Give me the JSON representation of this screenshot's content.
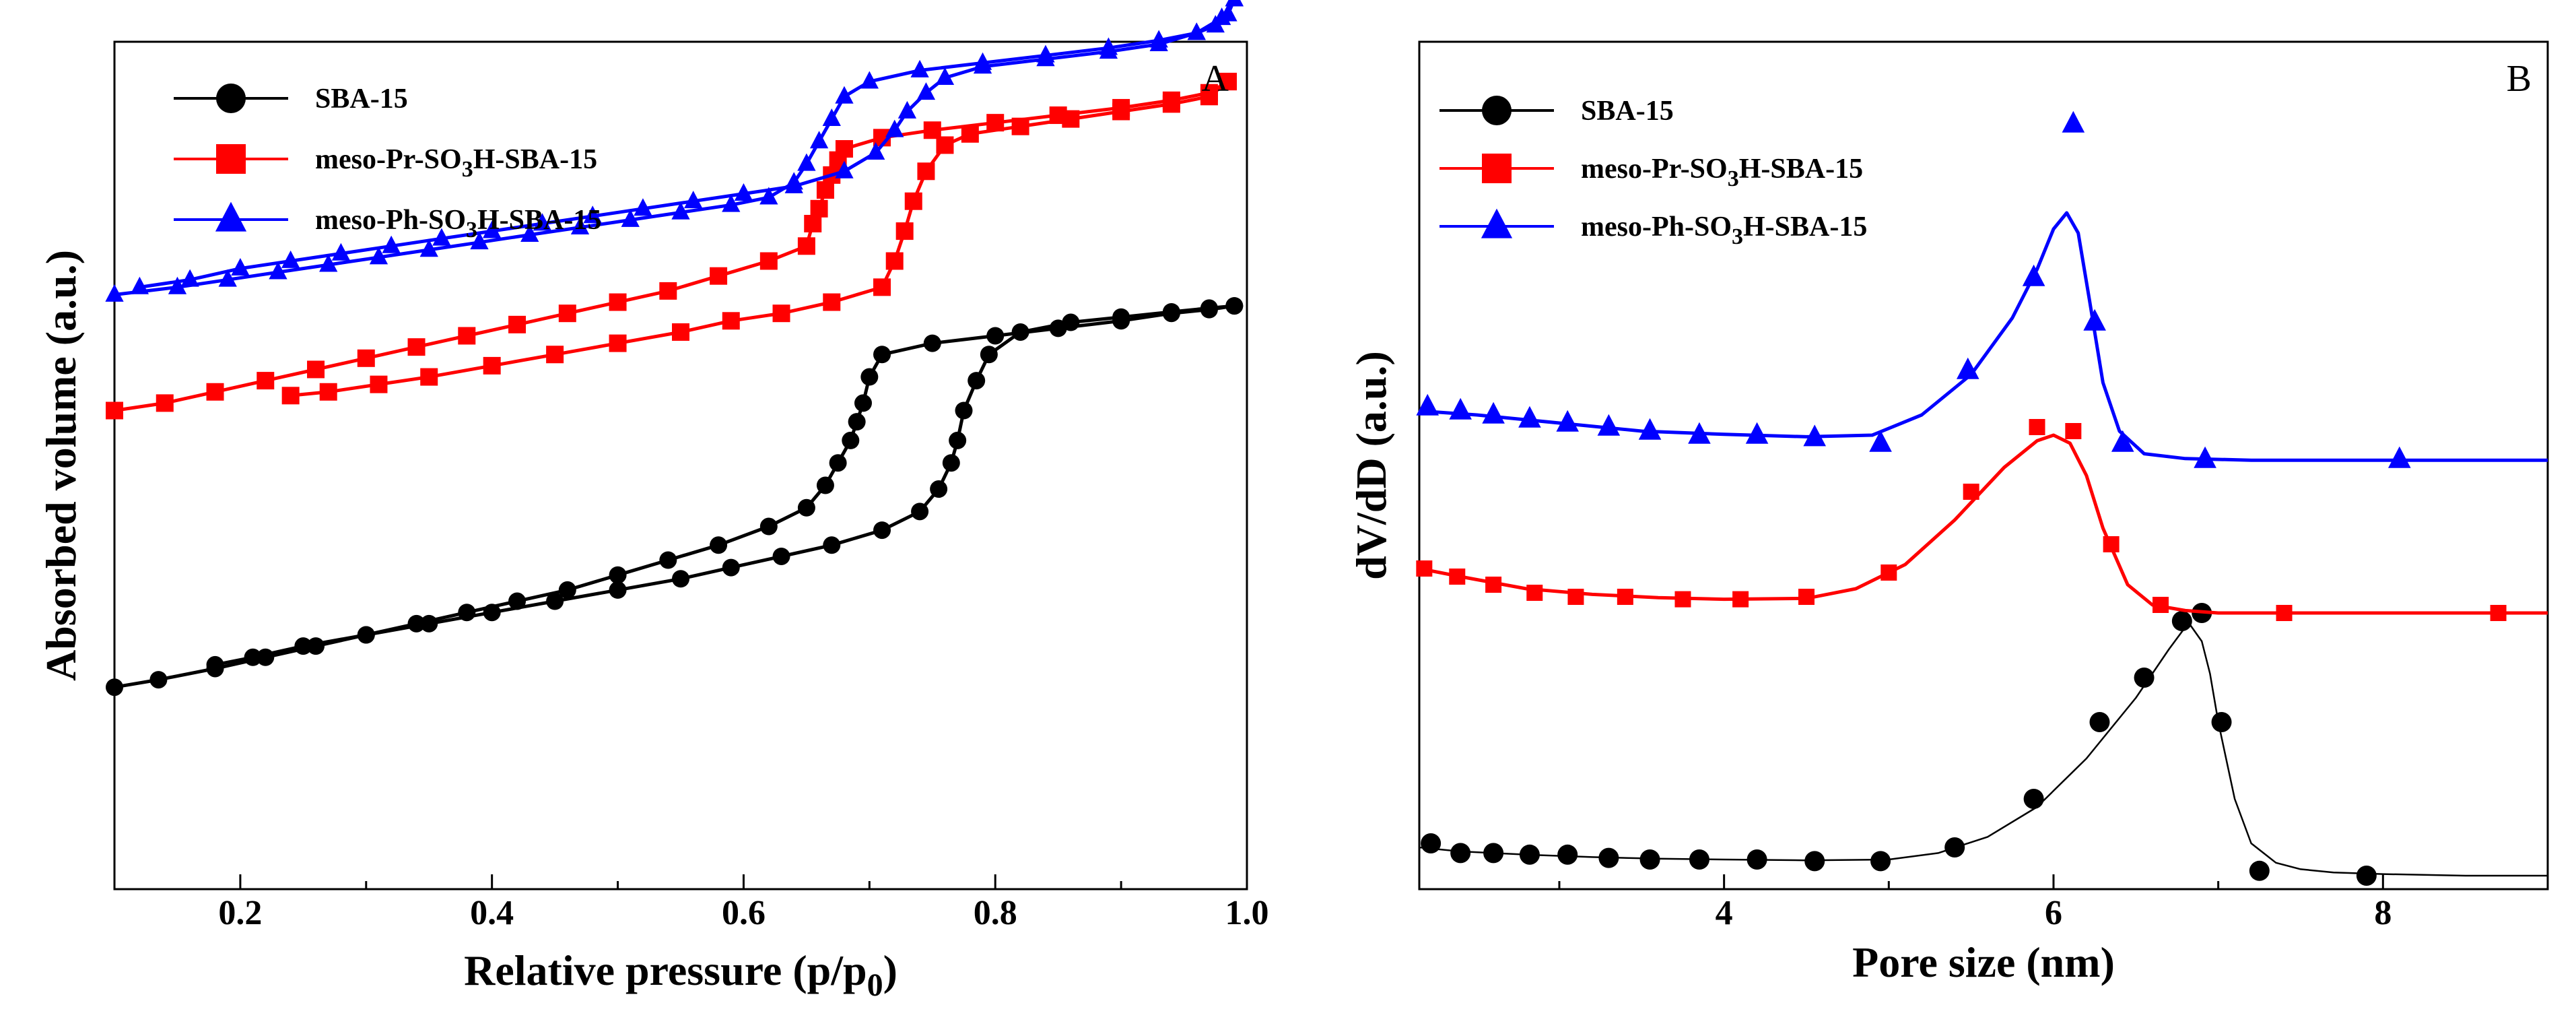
{
  "chart_data": [
    {
      "type": "line",
      "panel_label": "A",
      "xlabel": "Relative pressure (p/p0)",
      "xlabel_parts": {
        "main": "Relative pressure (p/p",
        "sub": "0",
        "close": ")"
      },
      "ylabel": "Absorbed volume (a.u.)",
      "xlim": [
        0.1,
        1.0
      ],
      "ylim": [
        0,
        100
      ],
      "xticks": [
        0.2,
        0.4,
        0.6,
        0.8,
        1.0
      ],
      "xtick_labels": [
        "0.2",
        "0.4",
        "0.6",
        "0.8",
        "1.0"
      ],
      "yticks_shown": false,
      "legend_position": "top-left",
      "series": [
        {
          "name": "SBA-15",
          "name_parts": {
            "pre": "SBA-15",
            "sub": "",
            "post": ""
          },
          "color": "#000000",
          "marker": "circle",
          "adsorption": {
            "x": [
              0.1,
              0.135,
              0.18,
              0.22,
              0.26,
              0.3,
              0.34,
              0.38,
              0.42,
              0.46,
              0.5,
              0.54,
              0.58,
              0.62,
              0.65,
              0.665,
              0.675,
              0.685,
              0.69,
              0.695,
              0.7,
              0.71,
              0.75,
              0.8,
              0.85,
              0.9,
              0.94,
              0.97,
              0.99
            ],
            "y": [
              18.0,
              19.0,
              20.5,
              22.0,
              23.5,
              25.0,
              26.5,
              28.0,
              29.5,
              31.0,
              33.0,
              35.0,
              37.0,
              39.5,
              42.0,
              45.0,
              48.0,
              51.0,
              53.5,
              56.0,
              59.5,
              62.5,
              64.0,
              65.0,
              66.0,
              67.0,
              68.0,
              68.5,
              69.0
            ]
          },
          "desorption": {
            "x": [
              0.99,
              0.97,
              0.94,
              0.9,
              0.86,
              0.82,
              0.795,
              0.785,
              0.775,
              0.77,
              0.765,
              0.755,
              0.74,
              0.71,
              0.67,
              0.63,
              0.59,
              0.55,
              0.5,
              0.45,
              0.4,
              0.35,
              0.3,
              0.25,
              0.21,
              0.18
            ],
            "y": [
              69.0,
              68.7,
              68.2,
              67.5,
              66.8,
              65.5,
              62.5,
              59.0,
              55.0,
              51.0,
              48.0,
              44.5,
              41.5,
              39.0,
              37.0,
              35.5,
              34.0,
              32.5,
              31.0,
              29.5,
              28.0,
              26.5,
              25.0,
              23.5,
              22.0,
              21.0
            ]
          }
        },
        {
          "name": "meso-Pr-SO3H-SBA-15",
          "name_parts": {
            "pre": "meso-Pr-SO",
            "sub": "3",
            "post": "H-SBA-15"
          },
          "color": "#ff0000",
          "marker": "square",
          "adsorption": {
            "x": [
              0.1,
              0.14,
              0.18,
              0.22,
              0.26,
              0.3,
              0.34,
              0.38,
              0.42,
              0.46,
              0.5,
              0.54,
              0.58,
              0.62,
              0.65,
              0.655,
              0.66,
              0.665,
              0.67,
              0.675,
              0.68,
              0.71,
              0.75,
              0.8,
              0.85,
              0.9,
              0.94,
              0.97,
              0.985
            ],
            "y": [
              55.0,
              56.0,
              57.5,
              59.0,
              60.5,
              62.0,
              63.5,
              65.0,
              66.5,
              68.0,
              69.5,
              71.0,
              73.0,
              75.0,
              77.0,
              80.0,
              82.0,
              84.5,
              86.5,
              88.5,
              90.0,
              91.5,
              92.5,
              93.5,
              94.5,
              95.5,
              96.5,
              97.5,
              99.0
            ]
          },
          "desorption": {
            "x": [
              0.985,
              0.97,
              0.94,
              0.9,
              0.86,
              0.82,
              0.78,
              0.76,
              0.745,
              0.735,
              0.728,
              0.72,
              0.71,
              0.67,
              0.63,
              0.59,
              0.55,
              0.5,
              0.45,
              0.4,
              0.35,
              0.31,
              0.27,
              0.24
            ],
            "y": [
              99.0,
              97.0,
              96.0,
              95.0,
              94.0,
              93.0,
              92.0,
              90.5,
              87.0,
              83.0,
              79.0,
              75.0,
              71.5,
              69.5,
              68.0,
              67.0,
              65.5,
              64.0,
              62.5,
              61.0,
              59.5,
              58.5,
              57.5,
              57.0
            ]
          }
        },
        {
          "name": "meso-Ph-SO3H-SBA-15",
          "name_parts": {
            "pre": "meso-Ph-SO",
            "sub": "3",
            "post": "H-SBA-15"
          },
          "color": "#0000ff",
          "marker": "triangle",
          "adsorption": {
            "x": [
              0.1,
              0.15,
              0.19,
              0.23,
              0.27,
              0.31,
              0.35,
              0.39,
              0.43,
              0.47,
              0.51,
              0.55,
              0.59,
              0.62,
              0.64,
              0.65,
              0.66,
              0.67,
              0.68,
              0.7,
              0.74,
              0.79,
              0.84,
              0.89,
              0.93,
              0.96,
              0.975,
              0.985,
              0.99
            ],
            "y": [
              70.5,
              71.5,
              72.5,
              73.5,
              74.5,
              75.5,
              76.5,
              77.5,
              78.5,
              79.5,
              80.5,
              81.5,
              82.5,
              83.5,
              85.5,
              88.0,
              91.0,
              94.0,
              97.0,
              99.0,
              100.5,
              101.5,
              102.5,
              103.5,
              104.5,
              105.5,
              106.5,
              108.0,
              110.0
            ]
          },
          "desorption": {
            "x": [
              0.99,
              0.98,
              0.96,
              0.93,
              0.89,
              0.84,
              0.79,
              0.76,
              0.745,
              0.73,
              0.72,
              0.705,
              0.68,
              0.64,
              0.6,
              0.56,
              0.52,
              0.48,
              0.44,
              0.4,
              0.36,
              0.32,
              0.28,
              0.24,
              0.2,
              0.16,
              0.12
            ],
            "y": [
              110.0,
              107.5,
              105.5,
              104.0,
              103.0,
              102.0,
              101.0,
              99.5,
              97.5,
              95.0,
              92.5,
              89.5,
              87.0,
              85.0,
              84.0,
              83.0,
              82.0,
              81.0,
              80.0,
              79.0,
              78.0,
              77.0,
              76.0,
              75.0,
              74.0,
              72.5,
              71.5
            ]
          }
        }
      ]
    },
    {
      "type": "line",
      "panel_label": "B",
      "xlabel": "Pore size (nm)",
      "ylabel": "dV/dD (a.u.)",
      "xlim": [
        2.15,
        9.0
      ],
      "ylim": [
        0,
        100
      ],
      "xticks": [
        4,
        6,
        8
      ],
      "xtick_labels": [
        "4",
        "6",
        "8"
      ],
      "yticks_shown": false,
      "legend_position": "top-left",
      "series": [
        {
          "name": "SBA-15",
          "name_parts": {
            "pre": "SBA-15",
            "sub": "",
            "post": ""
          },
          "color": "#000000",
          "marker": "circle",
          "markers": {
            "x": [
              2.22,
              2.4,
              2.6,
              2.82,
              3.05,
              3.3,
              3.55,
              3.85,
              4.2,
              4.55,
              4.95,
              5.4,
              5.88,
              6.28,
              6.55,
              6.78,
              6.9,
              7.02,
              7.25,
              7.9
            ],
            "y": [
              9.0,
              7.8,
              7.8,
              7.6,
              7.6,
              7.2,
              7.0,
              7.0,
              7.0,
              6.8,
              6.8,
              8.5,
              14.5,
              24.0,
              29.5,
              36.5,
              37.5,
              24.0,
              5.6,
              5.0
            ]
          },
          "curve": {
            "x": [
              2.15,
              2.4,
              2.8,
              3.2,
              3.6,
              4.0,
              4.5,
              5.0,
              5.3,
              5.6,
              5.9,
              6.2,
              6.5,
              6.7,
              6.82,
              6.9,
              6.95,
              7.0,
              7.1,
              7.2,
              7.35,
              7.5,
              7.7,
              8.0,
              8.5,
              9.0
            ],
            "y": [
              8.5,
              8.0,
              7.6,
              7.3,
              7.1,
              7.0,
              6.9,
              7.0,
              7.8,
              9.8,
              13.5,
              19.5,
              27.0,
              33.0,
              36.3,
              34.0,
              30.0,
              24.0,
              14.5,
              9.0,
              6.6,
              5.8,
              5.4,
              5.2,
              5.0,
              5.0
            ]
          }
        },
        {
          "name": "meso-Pr-SO3H-SBA-15",
          "name_parts": {
            "pre": "meso-Pr-SO",
            "sub": "3",
            "post": "H-SBA-15"
          },
          "color": "#ff0000",
          "marker": "square",
          "markers": {
            "x": [
              2.18,
              2.38,
              2.6,
              2.85,
              3.1,
              3.4,
              3.75,
              4.1,
              4.5,
              5.0,
              5.5,
              5.9,
              6.12,
              6.35,
              6.65,
              7.4,
              8.7
            ],
            "y": [
              43.0,
              42.0,
              41.0,
              40.0,
              39.5,
              39.5,
              39.2,
              39.2,
              39.5,
              42.5,
              52.5,
              60.5,
              60.0,
              46.0,
              38.5,
              37.5,
              37.5
            ]
          },
          "curve": {
            "x": [
              2.15,
              2.4,
              2.8,
              3.2,
              3.6,
              4.0,
              4.5,
              4.8,
              5.1,
              5.4,
              5.7,
              5.9,
              6.0,
              6.1,
              6.2,
              6.3,
              6.45,
              6.6,
              6.8,
              7.0,
              7.5,
              8.0,
              9.0
            ],
            "y": [
              43.0,
              42.0,
              40.5,
              39.8,
              39.4,
              39.2,
              39.3,
              40.5,
              43.5,
              49.0,
              55.5,
              58.8,
              59.5,
              58.5,
              54.5,
              48.0,
              41.0,
              38.5,
              37.8,
              37.5,
              37.5,
              37.5,
              37.5
            ]
          }
        },
        {
          "name": "meso-Ph-SO3H-SBA-15",
          "name_parts": {
            "pre": "meso-Ph-SO",
            "sub": "3",
            "post": "H-SBA-15"
          },
          "color": "#0000ff",
          "marker": "triangle",
          "markers": {
            "x": [
              2.2,
              2.4,
              2.6,
              2.82,
              3.05,
              3.3,
              3.55,
              3.85,
              4.2,
              4.55,
              4.95,
              5.48,
              5.88,
              6.12,
              6.25,
              6.42,
              6.92,
              8.1
            ],
            "y": [
              63.0,
              62.5,
              62.0,
              61.5,
              61.0,
              60.5,
              60.0,
              59.5,
              59.5,
              59.2,
              58.5,
              67.5,
              79.0,
              98.0,
              73.5,
              58.5,
              56.5,
              56.5
            ]
          },
          "curve": {
            "x": [
              2.15,
              2.5,
              3.0,
              3.5,
              4.0,
              4.5,
              4.9,
              5.2,
              5.5,
              5.75,
              5.9,
              6.0,
              6.08,
              6.15,
              6.22,
              6.3,
              6.4,
              6.55,
              6.8,
              7.2,
              8.0,
              9.0
            ],
            "y": [
              62.5,
              62.0,
              61.0,
              60.0,
              59.6,
              59.3,
              59.5,
              62.0,
              67.0,
              74.0,
              80.0,
              85.0,
              87.0,
              84.5,
              76.0,
              66.0,
              60.0,
              57.2,
              56.6,
              56.4,
              56.4,
              56.4
            ]
          }
        }
      ]
    }
  ]
}
